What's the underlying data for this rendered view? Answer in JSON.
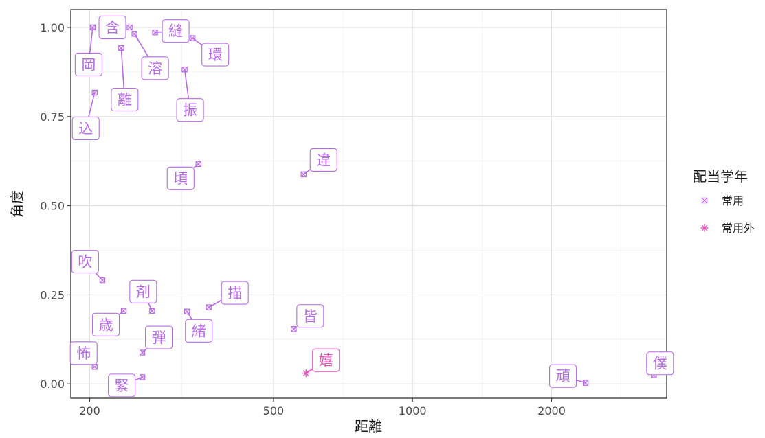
{
  "chart_data": {
    "type": "scatter",
    "xlabel": "距離",
    "ylabel": "角度",
    "x_scale": "log10",
    "xlim": [
      182,
      3550
    ],
    "ylim": [
      -0.04,
      1.05
    ],
    "x_ticks": [
      200,
      500,
      1000,
      2000
    ],
    "x_tick_labels": [
      "200",
      "500",
      "1000",
      "2000"
    ],
    "y_ticks": [
      0.0,
      0.25,
      0.5,
      0.75,
      1.0
    ],
    "y_tick_labels": [
      "0.00",
      "0.25",
      "0.50",
      "0.75",
      "1.00"
    ],
    "grid": true,
    "legend": {
      "title": "配当学年",
      "position": "right",
      "items": [
        {
          "label": "常用",
          "marker": "square-x",
          "color": "#b76ae8"
        },
        {
          "label": "常用外",
          "marker": "asterisk",
          "color": "#e64fba"
        }
      ]
    },
    "series": [
      {
        "name": "常用",
        "color": "#b76ae8",
        "marker": "square-x",
        "points": [
          {
            "x": 203,
            "y": 1.0,
            "label": "岡"
          },
          {
            "x": 244,
            "y": 1.0,
            "label": "含"
          },
          {
            "x": 250,
            "y": 0.982,
            "label": "溶"
          },
          {
            "x": 277,
            "y": 0.986,
            "label": "縫"
          },
          {
            "x": 334,
            "y": 0.97,
            "label": "環"
          },
          {
            "x": 234,
            "y": 0.942,
            "label": "離"
          },
          {
            "x": 321,
            "y": 0.882,
            "label": "振"
          },
          {
            "x": 205,
            "y": 0.817,
            "label": "込"
          },
          {
            "x": 344,
            "y": 0.617,
            "label": "頃"
          },
          {
            "x": 581,
            "y": 0.588,
            "label": "違"
          },
          {
            "x": 213,
            "y": 0.291,
            "label": "吹"
          },
          {
            "x": 237,
            "y": 0.205,
            "label": "歳"
          },
          {
            "x": 273,
            "y": 0.205,
            "label": "剤"
          },
          {
            "x": 325,
            "y": 0.203,
            "label": "緒"
          },
          {
            "x": 362,
            "y": 0.215,
            "label": "描"
          },
          {
            "x": 553,
            "y": 0.154,
            "label": "皆"
          },
          {
            "x": 260,
            "y": 0.088,
            "label": "弾"
          },
          {
            "x": 205,
            "y": 0.048,
            "label": "怖"
          },
          {
            "x": 260,
            "y": 0.019,
            "label": "緊"
          },
          {
            "x": 2370,
            "y": 0.003,
            "label": "頑"
          },
          {
            "x": 3330,
            "y": 0.025,
            "label": "僕"
          }
        ]
      },
      {
        "name": "常用外",
        "color": "#e64fba",
        "marker": "asterisk",
        "points": [
          {
            "x": 588,
            "y": 0.03,
            "label": "嬉"
          }
        ]
      }
    ]
  }
}
